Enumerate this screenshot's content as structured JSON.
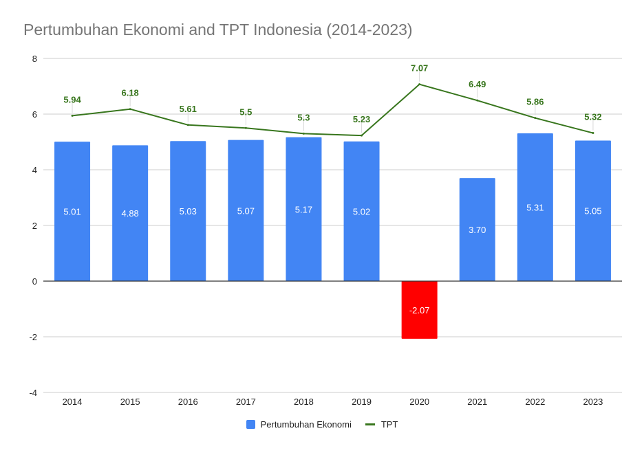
{
  "chart_data": {
    "type": "bar",
    "title": "Pertumbuhan Ekonomi and TPT Indonesia (2014-2023)",
    "xlabel": "",
    "ylabel": "",
    "categories": [
      "2014",
      "2015",
      "2016",
      "2017",
      "2018",
      "2019",
      "2020",
      "2021",
      "2022",
      "2023"
    ],
    "ylim": [
      -4,
      8
    ],
    "yticks": [
      -4,
      -2,
      0,
      2,
      4,
      6,
      8
    ],
    "grid": true,
    "legend_position": "bottom",
    "series": [
      {
        "name": "Pertumbuhan Ekonomi",
        "type": "bar",
        "values": [
          5.01,
          4.88,
          5.03,
          5.07,
          5.17,
          5.02,
          -2.07,
          3.7,
          5.31,
          5.05
        ],
        "labels": [
          "5.01",
          "4.88",
          "5.03",
          "5.07",
          "5.17",
          "5.02",
          "-2.07",
          "3.70",
          "5.31",
          "5.05"
        ],
        "color": "#4285f4",
        "negative_color": "#ff0000"
      },
      {
        "name": "TPT",
        "type": "line",
        "values": [
          5.94,
          6.18,
          5.61,
          5.5,
          5.3,
          5.23,
          7.07,
          6.49,
          5.86,
          5.32
        ],
        "labels": [
          "5.94",
          "6.18",
          "5.61",
          "5.5",
          "5.3",
          "5.23",
          "7.07",
          "6.49",
          "5.86",
          "5.32"
        ],
        "color": "#38761d"
      }
    ]
  },
  "legend": {
    "items": [
      {
        "label": "Pertumbuhan Ekonomi",
        "color": "#4285f4"
      },
      {
        "label": "TPT",
        "color": "#38761d"
      }
    ]
  }
}
